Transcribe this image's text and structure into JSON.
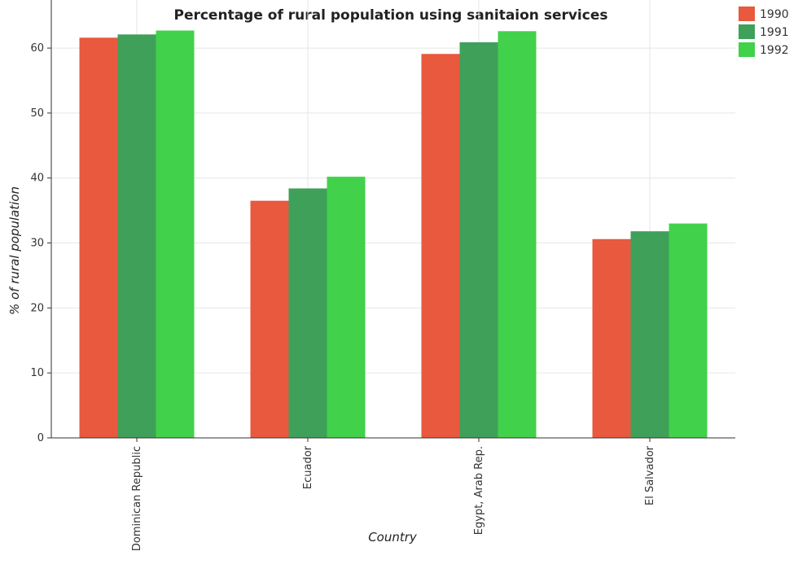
{
  "chart_data": {
    "type": "bar",
    "title": "Percentage of rural population using sanitaion services",
    "xlabel": "Country",
    "ylabel": "% of rural population",
    "categories": [
      "Dominican Republic",
      "Ecuador",
      "Egypt, Arab Rep.",
      "El Salvador"
    ],
    "series": [
      {
        "name": "1990",
        "color": "#e8593e",
        "values": [
          61.6,
          36.5,
          59.1,
          30.6
        ]
      },
      {
        "name": "1991",
        "color": "#3fa05a",
        "values": [
          62.1,
          38.4,
          60.9,
          31.8
        ]
      },
      {
        "name": "1992",
        "color": "#42d14a",
        "values": [
          62.7,
          40.2,
          62.6,
          33.0
        ]
      }
    ],
    "ylim": [
      0,
      67.4
    ],
    "yticks": [
      0,
      10,
      20,
      30,
      40,
      50,
      60
    ],
    "grid": true,
    "legend_position": "top-right"
  }
}
